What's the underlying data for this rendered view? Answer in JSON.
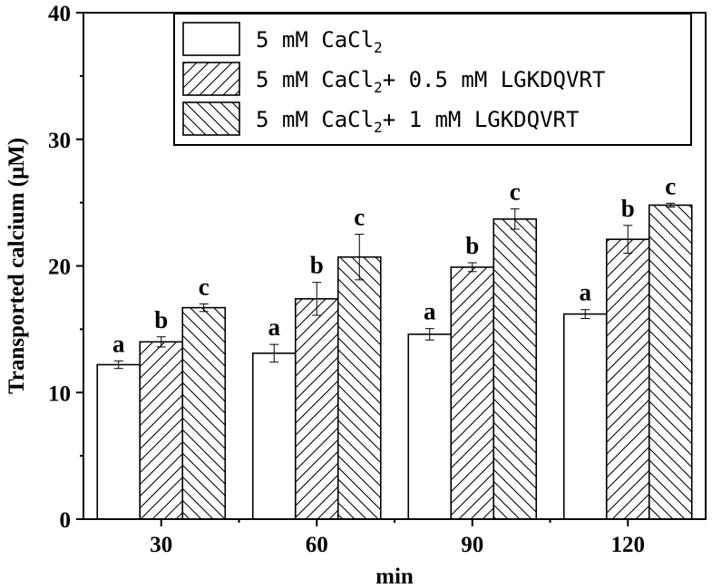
{
  "chart_data": {
    "type": "bar",
    "xlabel": "min",
    "ylabel": "Transported calcium (μM)",
    "ylim": [
      0,
      40
    ],
    "yticks": [
      0,
      10,
      20,
      30,
      40
    ],
    "categories": [
      "30",
      "60",
      "90",
      "120"
    ],
    "grid": false,
    "legend_position": "top-right",
    "series": [
      {
        "legend": {
          "pre": "5 mM CaCl",
          "sub": "2",
          "post": ""
        },
        "pattern": "none",
        "values": [
          12.2,
          13.1,
          14.6,
          16.2
        ],
        "errors": [
          0.3,
          0.7,
          0.45,
          0.35
        ],
        "labels": [
          "a",
          "a",
          "a",
          "a"
        ]
      },
      {
        "legend": {
          "pre": "5 mM CaCl",
          "sub": "2",
          "post": "+ 0.5 mM LGKDQVRT"
        },
        "pattern": "forward-hatch",
        "values": [
          14.0,
          17.4,
          19.9,
          22.1
        ],
        "errors": [
          0.4,
          1.3,
          0.35,
          1.1
        ],
        "labels": [
          "b",
          "b",
          "b",
          "b"
        ]
      },
      {
        "legend": {
          "pre": "5 mM CaCl",
          "sub": "2",
          "post": "+ 1 mM LGKDQVRT"
        },
        "pattern": "back-hatch",
        "values": [
          16.7,
          20.7,
          23.7,
          24.8
        ],
        "errors": [
          0.3,
          1.8,
          0.8,
          0.15
        ],
        "labels": [
          "c",
          "c",
          "c",
          "c"
        ]
      }
    ]
  }
}
